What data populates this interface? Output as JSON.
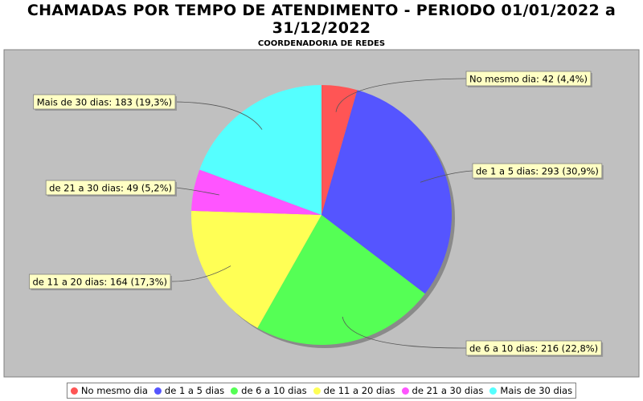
{
  "chart_data": {
    "type": "pie",
    "title": "CHAMADAS POR TEMPO DE ATENDIMENTO - PERIODO 01/01/2022 a 31/12/2022",
    "subtitle": "COORDENADORIA DE REDES",
    "categories": [
      "No mesmo dia",
      "de 1 a 5 dias",
      "de 6 a 10 dias",
      "de 11 a 20 dias",
      "de 21 a 30 dias",
      "Mais de 30 dias"
    ],
    "values": [
      42,
      293,
      216,
      164,
      49,
      183
    ],
    "value_labels": [
      "No mesmo dia: 42 (4,4%)",
      "de 1 a 5 dias: 293 (30,9%)",
      "de 6 a 10 dias: 216 (22,8%)",
      "de 11 a 20 dias: 164 (17,3%)",
      "de 21 a 30 dias: 49 (5,2%)",
      "Mais de 30 dias: 183 (19,3%)"
    ],
    "colors": [
      "#ff5555",
      "#5555ff",
      "#55ff55",
      "#ffff55",
      "#ff55ff",
      "#55ffff"
    ],
    "legend": "bottom"
  }
}
